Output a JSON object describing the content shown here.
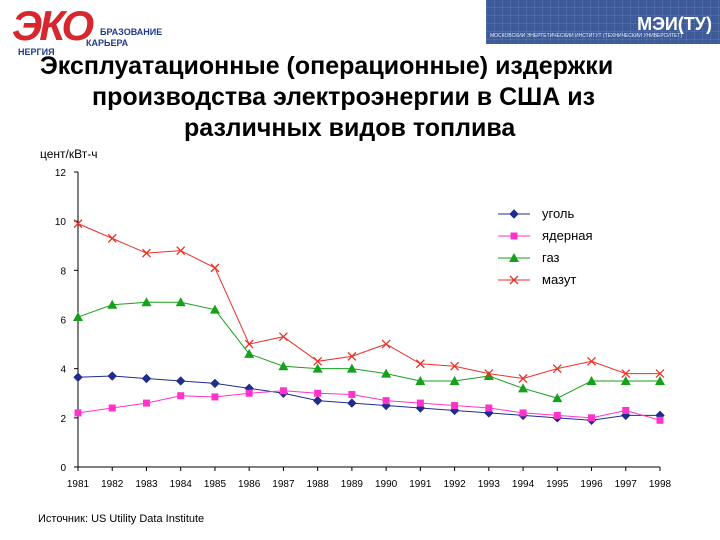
{
  "header": {
    "logo_left": {
      "mark": "ЭКО",
      "line1": "БРАЗОВАНИЕ",
      "line2": "КАРЬЕРА",
      "line3": "НЕРГИЯ"
    },
    "logo_right": {
      "abbr": "МЭИ(ТУ)",
      "subtitle": "МОСКОВСКИЙ ЭНЕРГЕТИЧЕСКИЙ ИНСТИТУТ (ТЕХНИЧЕСКИЙ УНИВЕРСИТЕТ)"
    },
    "title_lines": [
      "Эксплуатационные (операционные) издержки",
      "производства электроэнергии в США из",
      "различных видов топлива"
    ]
  },
  "footer": {
    "source": "Источник: US Utility Data Institute"
  },
  "colors": {
    "coal": "#1f2d8c",
    "nuclear": "#ff33cc",
    "gas": "#16a11a",
    "oil": "#e8322a",
    "axis": "#000000"
  },
  "chart_data": {
    "type": "line",
    "ylabel": "цент/кВт-ч",
    "xlabel": "",
    "title": "",
    "ylim": [
      0,
      12
    ],
    "yticks": [
      0,
      2,
      4,
      6,
      8,
      10,
      12
    ],
    "grid": false,
    "legend_position": "top-right",
    "x": [
      "1981",
      "1982",
      "1983",
      "1984",
      "1985",
      "1986",
      "1987",
      "1988",
      "1989",
      "1990",
      "1991",
      "1992",
      "1993",
      "1994",
      "1995",
      "1996",
      "1997",
      "1998"
    ],
    "series": [
      {
        "key": "coal",
        "name": "уголь",
        "marker": "diamond",
        "values": [
          3.65,
          3.7,
          3.6,
          3.5,
          3.4,
          3.2,
          3.0,
          2.7,
          2.6,
          2.5,
          2.4,
          2.3,
          2.2,
          2.1,
          2.0,
          1.9,
          2.1,
          2.1
        ]
      },
      {
        "key": "nuclear",
        "name": "ядерная",
        "marker": "square",
        "values": [
          2.2,
          2.4,
          2.6,
          2.9,
          2.85,
          3.0,
          3.1,
          3.0,
          2.95,
          2.7,
          2.6,
          2.5,
          2.4,
          2.2,
          2.1,
          2.0,
          2.3,
          1.9
        ]
      },
      {
        "key": "gas",
        "name": "газ",
        "marker": "triangle",
        "values": [
          6.1,
          6.6,
          6.7,
          6.7,
          6.4,
          4.6,
          4.1,
          4.0,
          4.0,
          3.8,
          3.5,
          3.5,
          3.7,
          3.2,
          2.8,
          3.5,
          3.5,
          3.5
        ]
      },
      {
        "key": "oil",
        "name": "мазут",
        "marker": "x",
        "values": [
          9.9,
          9.3,
          8.7,
          8.8,
          8.1,
          5.0,
          5.3,
          4.3,
          4.5,
          5.0,
          4.2,
          4.1,
          3.8,
          3.6,
          4.0,
          4.3,
          3.8,
          3.8
        ]
      }
    ]
  }
}
